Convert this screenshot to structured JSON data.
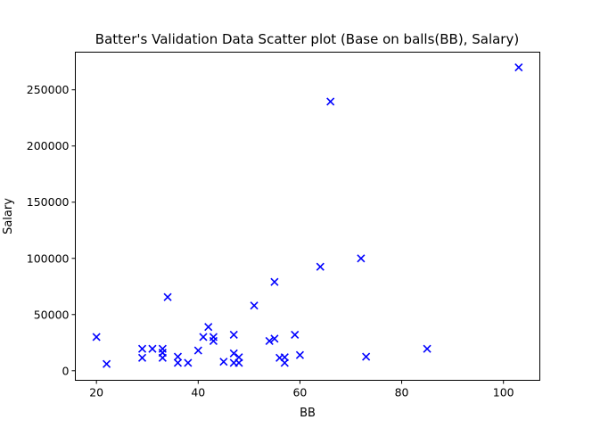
{
  "chart_data": {
    "type": "scatter",
    "title": "Batter's Validation Data Scatter plot (Base on balls(BB), Salary)",
    "xlabel": "BB",
    "ylabel": "Salary",
    "xlim": [
      15.85,
      107.15
    ],
    "ylim": [
      -8500,
      283500
    ],
    "xticks": [
      20,
      40,
      60,
      80,
      100
    ],
    "yticks": [
      0,
      50000,
      100000,
      150000,
      200000,
      250000
    ],
    "marker": "x",
    "color": "#0000ff",
    "grid": false,
    "legend": false,
    "series": [
      {
        "x": [
          20,
          22,
          29,
          29,
          31,
          33,
          33,
          33,
          34,
          36,
          36,
          38,
          40,
          41,
          42,
          43,
          43,
          45,
          47,
          47,
          47,
          48,
          48,
          51,
          54,
          55,
          55,
          56,
          57,
          57,
          59,
          60,
          64,
          66,
          72,
          73,
          85,
          103
        ],
        "y": [
          30000,
          6000,
          19500,
          11500,
          19500,
          19500,
          16000,
          11500,
          65500,
          12500,
          7000,
          7000,
          18000,
          30000,
          39000,
          30000,
          26500,
          8000,
          32000,
          15500,
          7000,
          12000,
          7000,
          58000,
          26500,
          28500,
          79000,
          11500,
          12000,
          7000,
          32000,
          14000,
          92500,
          239500,
          100000,
          12500,
          19500,
          270000
        ]
      }
    ]
  }
}
